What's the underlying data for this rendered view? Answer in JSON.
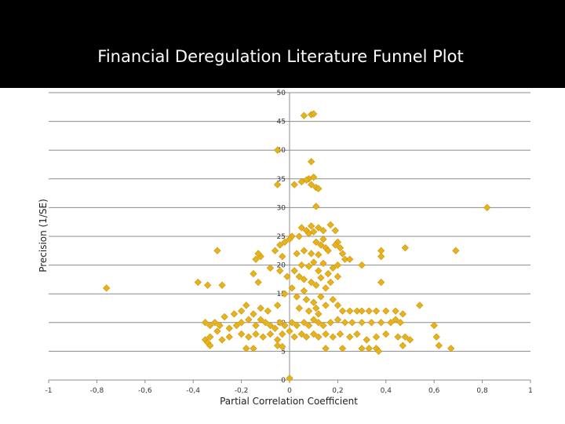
{
  "chart_data": {
    "type": "scatter",
    "title": "Financial Deregulation Literature Funnel Plot",
    "xlabel": "Partial Correlation Coefficient",
    "ylabel": "Precision (1/SE)",
    "xlim": [
      -1,
      1
    ],
    "ylim": [
      0,
      50
    ],
    "xticks": [
      "-1",
      "-0,8",
      "-0,6",
      "-0,4",
      "-0,2",
      "0",
      "0,2",
      "0,4",
      "0,6",
      "0,8",
      "1"
    ],
    "yticks": [
      "0",
      "5",
      "10",
      "15",
      "20",
      "25",
      "30",
      "35",
      "40",
      "45",
      "50"
    ],
    "grid": "horizontal",
    "marker_color": "#E8B21A",
    "points": [
      [
        0.06,
        46
      ],
      [
        0.09,
        46.2
      ],
      [
        0.1,
        46.3
      ],
      [
        -0.05,
        40
      ],
      [
        0.09,
        38
      ],
      [
        0.05,
        34.5
      ],
      [
        0.08,
        35
      ],
      [
        0.09,
        34
      ],
      [
        0.1,
        35.3
      ],
      [
        0.11,
        33.5
      ],
      [
        0.07,
        34.8
      ],
      [
        0.02,
        34
      ],
      [
        -0.05,
        34
      ],
      [
        0.12,
        33.3
      ],
      [
        0.11,
        30.2
      ],
      [
        0.82,
        30
      ],
      [
        0.05,
        26.5
      ],
      [
        0.07,
        26
      ],
      [
        0.09,
        26.8
      ],
      [
        0.1,
        25.8
      ],
      [
        0.12,
        26.5
      ],
      [
        0.14,
        26
      ],
      [
        0.17,
        27
      ],
      [
        0.19,
        26
      ],
      [
        0.04,
        25
      ],
      [
        0.08,
        25.5
      ],
      [
        0.11,
        24
      ],
      [
        0.13,
        23.5
      ],
      [
        0.15,
        23
      ],
      [
        0.06,
        22.5
      ],
      [
        0.09,
        22
      ],
      [
        0.12,
        21.8
      ],
      [
        0.16,
        22.5
      ],
      [
        0.01,
        25
      ],
      [
        0,
        24.5
      ],
      [
        -0.02,
        24
      ],
      [
        -0.04,
        23.5
      ],
      [
        -0.06,
        22.5
      ],
      [
        -0.03,
        21.5
      ],
      [
        0.03,
        22
      ],
      [
        0.2,
        24
      ],
      [
        0.22,
        22
      ],
      [
        0.23,
        21
      ],
      [
        0.25,
        21
      ],
      [
        0.21,
        23
      ],
      [
        0.19,
        23.5
      ],
      [
        0.14,
        24.5
      ],
      [
        -0.12,
        21.5
      ],
      [
        -0.14,
        21
      ],
      [
        -0.13,
        22
      ],
      [
        -0.3,
        22.5
      ],
      [
        0.38,
        22.5
      ],
      [
        0.38,
        21.5
      ],
      [
        0.48,
        23
      ],
      [
        0.69,
        22.5
      ],
      [
        0.05,
        20
      ],
      [
        0.08,
        19.8
      ],
      [
        0.1,
        20.5
      ],
      [
        0.12,
        19
      ],
      [
        0.14,
        20.3
      ],
      [
        0.16,
        18.5
      ],
      [
        0.18,
        19.5
      ],
      [
        0.2,
        20
      ],
      [
        0.02,
        19
      ],
      [
        0.04,
        18
      ],
      [
        0.06,
        17.5
      ],
      [
        0.09,
        17
      ],
      [
        0.11,
        16.5
      ],
      [
        0.13,
        17.8
      ],
      [
        0.15,
        16
      ],
      [
        0.17,
        17
      ],
      [
        0.2,
        18
      ],
      [
        -0.04,
        19
      ],
      [
        -0.15,
        18.5
      ],
      [
        -0.13,
        17
      ],
      [
        0.3,
        20
      ],
      [
        0.38,
        17
      ],
      [
        -0.38,
        17
      ],
      [
        -0.34,
        16.5
      ],
      [
        -0.28,
        16.5
      ],
      [
        -0.76,
        16
      ],
      [
        -0.08,
        19.5
      ],
      [
        -0.01,
        18
      ],
      [
        0.01,
        16
      ],
      [
        -0.02,
        15
      ],
      [
        0.03,
        14.5
      ],
      [
        0.07,
        14
      ],
      [
        0.1,
        13.5
      ],
      [
        0.13,
        14.5
      ],
      [
        0.15,
        13
      ],
      [
        0.18,
        14
      ],
      [
        0.2,
        13
      ],
      [
        0.04,
        12.5
      ],
      [
        0.08,
        12
      ],
      [
        0.11,
        12.5
      ],
      [
        -0.05,
        13
      ],
      [
        -0.09,
        12
      ],
      [
        -0.12,
        12.5
      ],
      [
        -0.15,
        11.5
      ],
      [
        -0.2,
        12
      ],
      [
        -0.23,
        11.5
      ],
      [
        -0.27,
        11
      ],
      [
        -0.18,
        13
      ],
      [
        0.22,
        12
      ],
      [
        0.25,
        12
      ],
      [
        0.28,
        12
      ],
      [
        0.3,
        12
      ],
      [
        0.33,
        12
      ],
      [
        0.36,
        12
      ],
      [
        0.4,
        12
      ],
      [
        0.44,
        12
      ],
      [
        0.47,
        11.5
      ],
      [
        0.54,
        13
      ],
      [
        0.12,
        11.5
      ],
      [
        0.06,
        15.5
      ],
      [
        -0.35,
        10
      ],
      [
        -0.33,
        9.5
      ],
      [
        -0.31,
        10
      ],
      [
        -0.29,
        9.5
      ],
      [
        -0.3,
        8.5
      ],
      [
        -0.25,
        9
      ],
      [
        -0.22,
        9.5
      ],
      [
        -0.2,
        10
      ],
      [
        -0.17,
        10.5
      ],
      [
        -0.14,
        9.5
      ],
      [
        -0.12,
        10.5
      ],
      [
        -0.1,
        10
      ],
      [
        -0.08,
        9.5
      ],
      [
        -0.06,
        9
      ],
      [
        -0.04,
        10
      ],
      [
        -0.02,
        9.5
      ],
      [
        0.01,
        10
      ],
      [
        0.03,
        9.5
      ],
      [
        0.06,
        10
      ],
      [
        0.08,
        9.5
      ],
      [
        0.1,
        10.5
      ],
      [
        0.12,
        10
      ],
      [
        0.14,
        9.5
      ],
      [
        0.17,
        10
      ],
      [
        0.2,
        10.5
      ],
      [
        0.23,
        10
      ],
      [
        0.26,
        10
      ],
      [
        0.3,
        10
      ],
      [
        0.34,
        10
      ],
      [
        0.38,
        10
      ],
      [
        0.42,
        10
      ],
      [
        0.44,
        10.5
      ],
      [
        0.46,
        10
      ],
      [
        0.6,
        9.5
      ],
      [
        -0.33,
        7.5
      ],
      [
        -0.35,
        7
      ],
      [
        -0.28,
        7
      ],
      [
        -0.25,
        7.5
      ],
      [
        -0.2,
        8
      ],
      [
        -0.17,
        7.5
      ],
      [
        -0.14,
        8
      ],
      [
        -0.11,
        7.5
      ],
      [
        -0.08,
        8
      ],
      [
        -0.05,
        7
      ],
      [
        -0.03,
        8
      ],
      [
        0,
        8.5
      ],
      [
        0.02,
        7.5
      ],
      [
        0.05,
        8
      ],
      [
        0.07,
        7.5
      ],
      [
        0.1,
        8
      ],
      [
        0.12,
        7.5
      ],
      [
        0.15,
        8
      ],
      [
        0.18,
        7.5
      ],
      [
        0.21,
        8
      ],
      [
        0.25,
        7.5
      ],
      [
        0.28,
        8
      ],
      [
        0.32,
        7
      ],
      [
        0.36,
        7.5
      ],
      [
        0.4,
        8
      ],
      [
        0.45,
        7.5
      ],
      [
        0.48,
        7.5
      ],
      [
        0.5,
        7
      ],
      [
        0.61,
        7.5
      ],
      [
        -0.34,
        6.5
      ],
      [
        -0.33,
        6
      ],
      [
        -0.18,
        5.5
      ],
      [
        -0.15,
        5.5
      ],
      [
        -0.05,
        6
      ],
      [
        -0.03,
        5.8
      ],
      [
        0.15,
        5.5
      ],
      [
        0.22,
        5.5
      ],
      [
        0.3,
        5.5
      ],
      [
        0.33,
        5.5
      ],
      [
        0.36,
        5.5
      ],
      [
        0.37,
        5
      ],
      [
        0.47,
        6
      ],
      [
        0.62,
        6
      ],
      [
        0.67,
        5.5
      ],
      [
        0,
        0.3
      ]
    ]
  }
}
